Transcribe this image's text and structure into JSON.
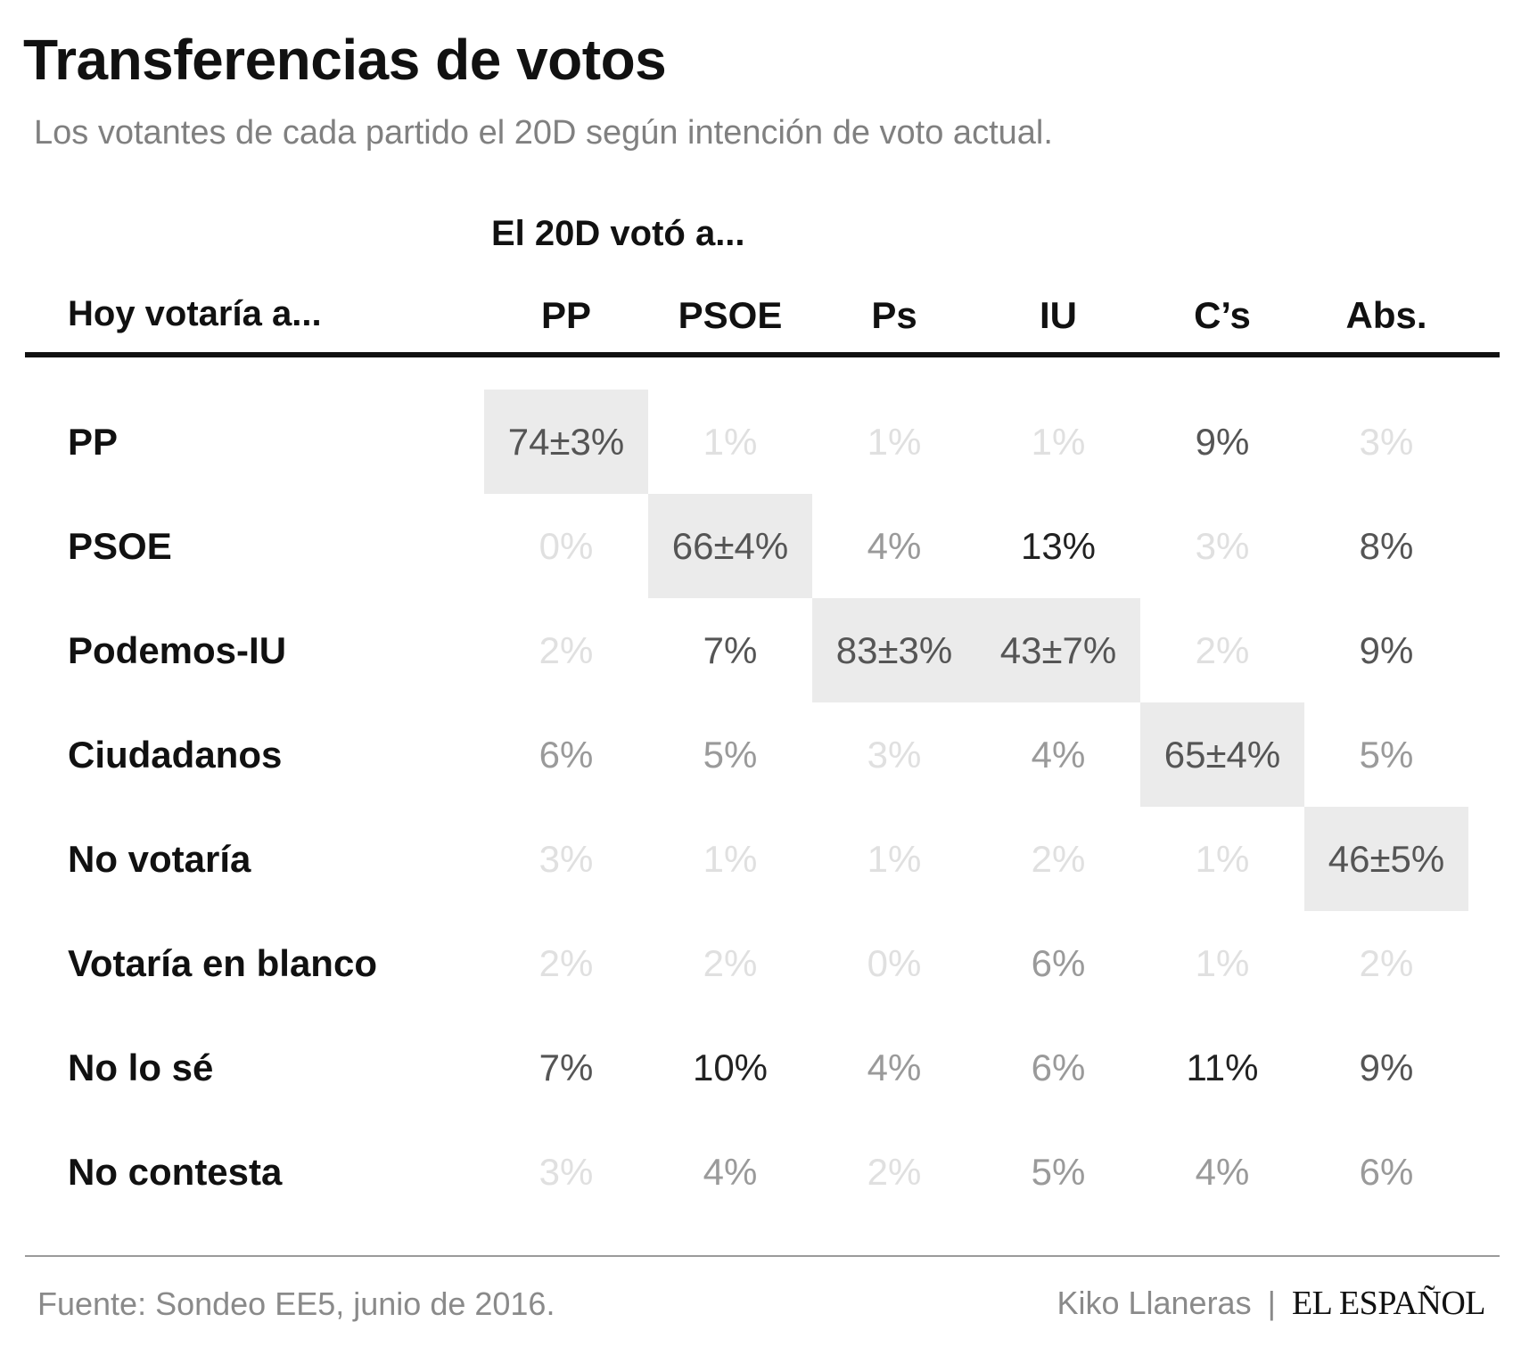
{
  "title": "Transferencias de votos",
  "subtitle": "Los votantes de cada partido el 20D según intención de voto actual.",
  "footer": {
    "source": "Fuente: Sondeo EE5, junio de 2016.",
    "author": "Kiko Llaneras",
    "separator": "|",
    "brand": "EL ESPAÑOL"
  },
  "chart_data": {
    "type": "table",
    "column_group_label": "El 20D votó a...",
    "row_header_label": "Hoy votaría a...",
    "columns": [
      "PP",
      "PSOE",
      "Ps",
      "IU",
      "C’s",
      "Abs."
    ],
    "rows": [
      {
        "label": "PP",
        "cells": [
          "74±3%",
          "1%",
          "1%",
          "1%",
          "9%",
          "3%"
        ],
        "values": [
          74,
          1,
          1,
          1,
          9,
          3
        ],
        "highlight": [
          0
        ]
      },
      {
        "label": "PSOE",
        "cells": [
          "0%",
          "66±4%",
          "4%",
          "13%",
          "3%",
          "8%"
        ],
        "values": [
          0,
          66,
          4,
          13,
          3,
          8
        ],
        "highlight": [
          1
        ]
      },
      {
        "label": "Podemos-IU",
        "cells": [
          "2%",
          "7%",
          "83±3%",
          "43±7%",
          "2%",
          "9%"
        ],
        "values": [
          2,
          7,
          83,
          43,
          2,
          9
        ],
        "highlight": [
          2,
          3
        ]
      },
      {
        "label": "Ciudadanos",
        "cells": [
          "6%",
          "5%",
          "3%",
          "4%",
          "65±4%",
          "5%"
        ],
        "values": [
          6,
          5,
          3,
          4,
          65,
          5
        ],
        "highlight": [
          4
        ]
      },
      {
        "label": "No votaría",
        "cells": [
          "3%",
          "1%",
          "1%",
          "2%",
          "1%",
          "46±5%"
        ],
        "values": [
          3,
          1,
          1,
          2,
          1,
          46
        ],
        "highlight": [
          5
        ]
      },
      {
        "label": "Votaría en blanco",
        "cells": [
          "2%",
          "2%",
          "0%",
          "6%",
          "1%",
          "2%"
        ],
        "values": [
          2,
          2,
          0,
          6,
          1,
          2
        ],
        "highlight": []
      },
      {
        "label": "No lo sé",
        "cells": [
          "7%",
          "10%",
          "4%",
          "6%",
          "11%",
          "9%"
        ],
        "values": [
          7,
          10,
          4,
          6,
          11,
          9
        ],
        "highlight": []
      },
      {
        "label": "No contesta",
        "cells": [
          "3%",
          "4%",
          "2%",
          "5%",
          "4%",
          "6%"
        ],
        "values": [
          3,
          4,
          2,
          5,
          4,
          6
        ],
        "highlight": []
      }
    ],
    "colors": {
      "highlight_background": "#ebebeb",
      "text_strong": "#222222",
      "text_mid": "#555555",
      "text_light": "#9a9a9a",
      "text_faint": "#e0e0e0"
    }
  }
}
